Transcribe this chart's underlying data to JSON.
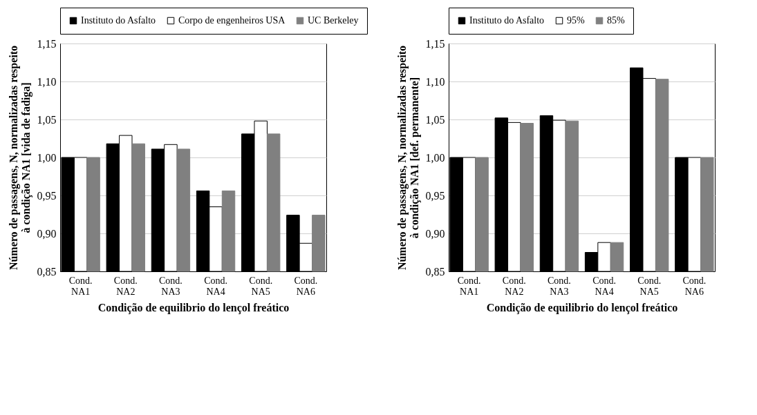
{
  "chart_data": [
    {
      "type": "bar",
      "xlabel": "Condição de equilibrio do lençol freático",
      "ylabel": "Número de passagens, N, normalizadas respeito à condição NA1 [vida de fadiga]",
      "categories": [
        "Cond. NA1",
        "Cond. NA2",
        "Cond. NA3",
        "Cond. NA4",
        "Cond. NA5",
        "Cond. NA6"
      ],
      "series": [
        {
          "name": "Instituto do Asfalto",
          "color": "#000000",
          "values": [
            1.0,
            1.018,
            1.011,
            0.956,
            1.031,
            0.924
          ]
        },
        {
          "name": "Corpo de engenheiros USA",
          "color": "#ffffff",
          "values": [
            1.0,
            1.029,
            1.017,
            0.935,
            1.048,
            0.887
          ]
        },
        {
          "name": "UC Berkeley",
          "color": "#808080",
          "values": [
            1.0,
            1.018,
            1.011,
            0.956,
            1.031,
            0.924
          ]
        }
      ],
      "ylim": [
        0.85,
        1.15
      ],
      "yticks": [
        {
          "value": 0.85,
          "label": "0,85"
        },
        {
          "value": 0.9,
          "label": "0,90"
        },
        {
          "value": 0.95,
          "label": "0,95"
        },
        {
          "value": 1.0,
          "label": "1,00"
        },
        {
          "value": 1.05,
          "label": "1,05"
        },
        {
          "value": 1.1,
          "label": "1,10"
        },
        {
          "value": 1.15,
          "label": "1,15"
        }
      ],
      "grid": "y",
      "legend": "top"
    },
    {
      "type": "bar",
      "xlabel": "Condição de equilibrio do lençol freático",
      "ylabel": "Número de passagens, N, normalizadas respeito à condição NA1 [def. permanente]",
      "categories": [
        "Cond. NA1",
        "Cond. NA2",
        "Cond. NA3",
        "Cond. NA4",
        "Cond. NA5",
        "Cond. NA6"
      ],
      "series": [
        {
          "name": "Instituto do Asfalto",
          "color": "#000000",
          "values": [
            1.0,
            1.052,
            1.055,
            0.875,
            1.118,
            1.0
          ]
        },
        {
          "name": "95%",
          "color": "#ffffff",
          "values": [
            1.0,
            1.046,
            1.049,
            0.888,
            1.104,
            1.0
          ]
        },
        {
          "name": "85%",
          "color": "#808080",
          "values": [
            1.0,
            1.045,
            1.048,
            0.888,
            1.103,
            1.0
          ]
        }
      ],
      "ylim": [
        0.85,
        1.15
      ],
      "yticks": [
        {
          "value": 0.85,
          "label": "0,85"
        },
        {
          "value": 0.9,
          "label": "0,90"
        },
        {
          "value": 0.95,
          "label": "0,95"
        },
        {
          "value": 1.0,
          "label": "1,00"
        },
        {
          "value": 1.05,
          "label": "1,05"
        },
        {
          "value": 1.1,
          "label": "1,10"
        },
        {
          "value": 1.15,
          "label": "1,15"
        }
      ],
      "grid": "y",
      "legend": "top"
    }
  ]
}
